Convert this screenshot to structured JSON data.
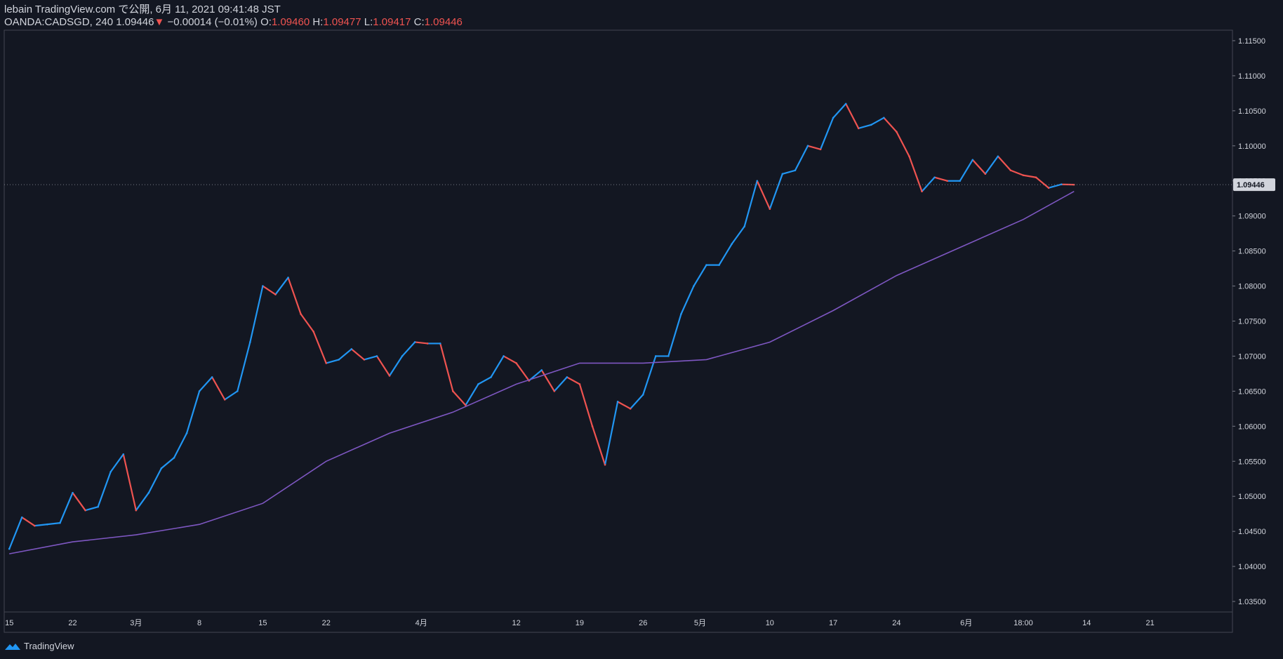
{
  "header": {
    "line1": "lebain TradingView.com で公開, 6月 11, 2021 09:41:48 JST",
    "symbol": "OANDA:CADSGD, 240",
    "last": "1.09446",
    "down_arrow": "▼",
    "change": "−0.00014 (−0.01%)",
    "o_label": "O:",
    "o": "1.09460",
    "h_label": "H:",
    "h": "1.09477",
    "l_label": "L:",
    "l": "1.09417",
    "c_label": "C:",
    "c": "1.09446"
  },
  "brand": {
    "name": "TradingView",
    "icon": "tradingview-logo-icon"
  },
  "colors": {
    "bg": "#131722",
    "up": "#2196f3",
    "down": "#ef5350",
    "ma": "#7e57c2",
    "axis_text": "#d1d4dc",
    "grid_line": "#787b86"
  },
  "chart_data": {
    "type": "line",
    "title": "",
    "xlabel": "",
    "ylabel": "",
    "ylim": [
      1.0335,
      1.1165
    ],
    "y_ticks": [
      "1.11500",
      "1.11000",
      "1.10500",
      "1.10000",
      "1.09500",
      "1.09000",
      "1.08500",
      "1.08000",
      "1.07500",
      "1.07000",
      "1.06500",
      "1.06000",
      "1.05500",
      "1.05000",
      "1.04500",
      "1.04000",
      "1.03500"
    ],
    "x_tick_labels": [
      {
        "label": "15",
        "pos": 0
      },
      {
        "label": "22",
        "pos": 5
      },
      {
        "label": "3月",
        "pos": 10
      },
      {
        "label": "8",
        "pos": 15
      },
      {
        "label": "15",
        "pos": 20
      },
      {
        "label": "22",
        "pos": 25
      },
      {
        "label": "4月",
        "pos": 32.5
      },
      {
        "label": "12",
        "pos": 40
      },
      {
        "label": "19",
        "pos": 45
      },
      {
        "label": "26",
        "pos": 50
      },
      {
        "label": "5月",
        "pos": 54.5
      },
      {
        "label": "10",
        "pos": 60
      },
      {
        "label": "17",
        "pos": 65
      },
      {
        "label": "24",
        "pos": 70
      },
      {
        "label": "6月",
        "pos": 75.5
      },
      {
        "label": "18:00",
        "pos": 80
      },
      {
        "label": "14",
        "pos": 85
      },
      {
        "label": "21",
        "pos": 90
      }
    ],
    "x_range": [
      -0.4,
      96.5
    ],
    "last_price_label": "1.09446",
    "series": [
      {
        "kind": "price",
        "x": [
          0,
          1,
          2,
          3,
          4,
          5,
          6,
          7,
          8,
          9,
          10,
          11,
          12,
          13,
          14,
          15,
          16,
          17,
          18,
          19,
          20,
          21,
          22,
          23,
          24,
          25,
          26,
          27,
          28,
          29,
          30,
          31,
          32,
          33,
          34,
          35,
          36,
          37,
          38,
          39,
          40,
          41,
          42,
          43,
          44,
          45,
          46,
          47,
          48,
          49,
          50,
          51,
          52,
          53,
          54,
          55,
          56,
          57,
          58,
          59,
          60,
          61,
          62,
          63,
          64,
          65,
          66,
          67,
          68,
          69,
          70,
          71,
          72,
          73,
          74,
          75,
          76,
          77,
          78,
          79,
          80,
          81,
          82,
          83,
          84
        ],
        "y": [
          1.0425,
          1.047,
          1.0458,
          1.046,
          1.0462,
          1.0505,
          1.048,
          1.0485,
          1.0535,
          1.056,
          1.048,
          1.0505,
          1.054,
          1.0555,
          1.059,
          1.065,
          1.067,
          1.0638,
          1.065,
          1.072,
          1.08,
          1.0788,
          1.0812,
          1.076,
          1.0735,
          1.069,
          1.0695,
          1.071,
          1.0695,
          1.07,
          1.0672,
          1.07,
          1.072,
          1.0718,
          1.0718,
          1.065,
          1.063,
          1.066,
          1.067,
          1.07,
          1.069,
          1.0665,
          1.068,
          1.065,
          1.067,
          1.066,
          1.06,
          1.0545,
          1.0635,
          1.0625,
          1.0645,
          1.07,
          1.07,
          1.076,
          1.08,
          1.083,
          1.083,
          1.086,
          1.0885,
          1.095,
          1.091,
          1.096,
          1.0965,
          1.1,
          1.0995,
          1.104,
          1.106,
          1.1025,
          1.103,
          1.104,
          1.102,
          1.0985,
          1.0935,
          1.0955,
          1.095,
          1.095,
          1.098,
          1.096,
          1.0985,
          1.0965,
          1.0958,
          1.0955,
          1.094,
          1.0945,
          1.09446
        ]
      },
      {
        "kind": "moving-average",
        "x": [
          0,
          5,
          10,
          15,
          20,
          25,
          30,
          35,
          40,
          45,
          50,
          55,
          60,
          65,
          70,
          75,
          80,
          84
        ],
        "y": [
          1.0418,
          1.0435,
          1.0445,
          1.046,
          1.049,
          1.055,
          1.059,
          1.062,
          1.066,
          1.069,
          1.069,
          1.0695,
          1.072,
          1.0765,
          1.0815,
          1.0855,
          1.0895,
          1.0935
        ]
      }
    ]
  }
}
